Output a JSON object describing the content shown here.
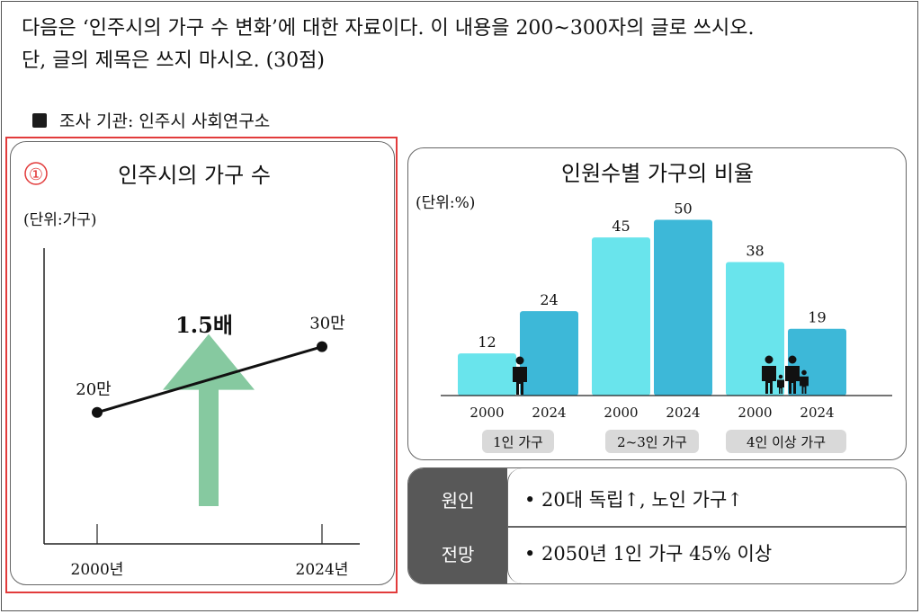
{
  "question": {
    "line1": "다음은 ‘인주시의 가구 수 변화’에 대한 자료이다. 이 내용을 200~300자의 글로 쓰시오.",
    "line2": "단, 글의 제목은 쓰지 마시오. (30점)"
  },
  "source": {
    "label": "조사 기관: 인주시 사회연구소"
  },
  "colors": {
    "arrow": "#86c9a0",
    "bar_2000": "#69e4ec",
    "bar_2024": "#3db8d8",
    "highlight": "#e23b3b",
    "tag_bg": "#d9d9d9",
    "dark_band": "#585858"
  },
  "chart_data": [
    {
      "type": "line",
      "marker": "①",
      "title": "인주시의 가구 수",
      "unit": "(단위:가구)",
      "x": [
        "2000년",
        "2024년"
      ],
      "values": [
        200000,
        300000
      ],
      "value_labels": [
        "20만",
        "30만"
      ],
      "annotation": "1.5배",
      "ylim": [
        0,
        450000
      ],
      "arrow_icon": "up-arrow-icon"
    },
    {
      "type": "bar",
      "title": "인원수별 가구의 비율",
      "unit": "(단위:%)",
      "categories": [
        "1인 가구",
        "2~3인 가구",
        "4인 이상 가구"
      ],
      "years": [
        "2000",
        "2024"
      ],
      "series": [
        {
          "name": "2000",
          "values": [
            12,
            45,
            38
          ]
        },
        {
          "name": "2024",
          "values": [
            24,
            50,
            19
          ]
        }
      ],
      "ylim": [
        0,
        55
      ],
      "icons": [
        "person-icon",
        "family-icon"
      ]
    }
  ],
  "summary": {
    "cause_label": "원인",
    "cause_text": "• 20대 독립↑, 노인 가구↑",
    "outlook_label": "전망",
    "outlook_text": "• 2050년 1인 가구 45% 이상"
  }
}
